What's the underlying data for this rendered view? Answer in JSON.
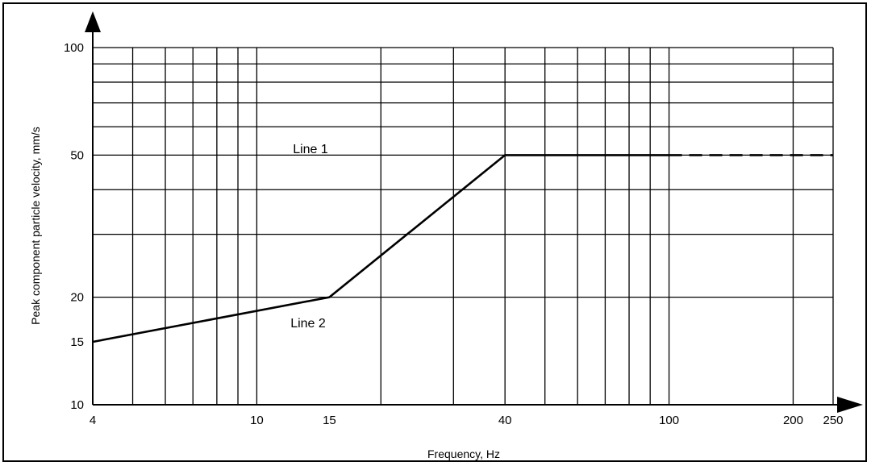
{
  "chart_data": {
    "type": "line",
    "title": "",
    "xlabel": "Frequency, Hz",
    "ylabel": "Peak component particle velocity, mm/s",
    "x_scale": "log",
    "y_scale": "log",
    "xlim": [
      4,
      250
    ],
    "ylim": [
      10,
      100
    ],
    "x_tick_labels": [
      4,
      10,
      15,
      40,
      100,
      200,
      250
    ],
    "y_tick_labels": [
      10,
      15,
      20,
      50,
      100
    ],
    "x_gridlines": [
      4,
      5,
      6,
      7,
      8,
      9,
      10,
      20,
      30,
      40,
      50,
      60,
      70,
      80,
      90,
      100,
      200,
      250
    ],
    "y_gridlines": [
      10,
      20,
      30,
      40,
      50,
      60,
      70,
      80,
      90,
      100
    ],
    "grid": true,
    "series": [
      {
        "name": "Line 1",
        "segments": [
          {
            "x": [
              40,
              100
            ],
            "y": [
              50,
              50
            ],
            "style": "solid"
          },
          {
            "x": [
              100,
              250
            ],
            "y": [
              50,
              50
            ],
            "style": "dashed"
          }
        ]
      },
      {
        "name": "Line 2",
        "segments": [
          {
            "x": [
              4,
              15,
              40
            ],
            "y": [
              15,
              20,
              50
            ],
            "style": "solid"
          }
        ]
      }
    ]
  }
}
